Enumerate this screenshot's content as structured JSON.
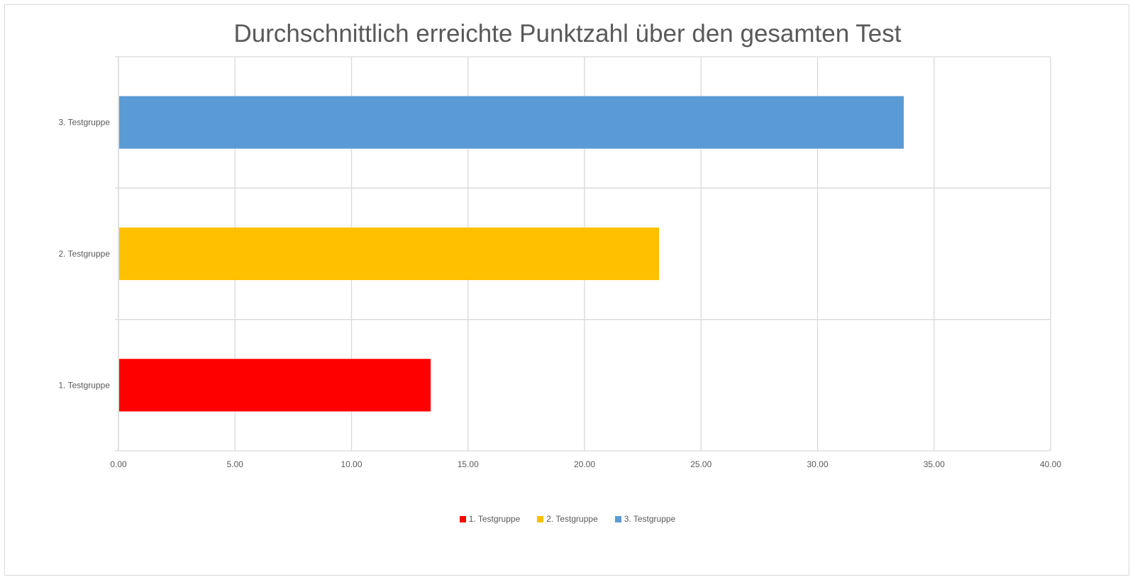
{
  "chart_data": {
    "type": "bar",
    "orientation": "horizontal",
    "title": "Durchschnittlich erreichte Punktzahl über den gesamten Test",
    "categories": [
      "1. Testgruppe",
      "2. Testgruppe",
      "3. Testgruppe"
    ],
    "values": [
      13.4,
      23.2,
      33.7
    ],
    "colors": [
      "#ff0000",
      "#ffc000",
      "#5b9bd5"
    ],
    "xlabel": "",
    "ylabel": "",
    "xlim": [
      0,
      40
    ],
    "x_ticks": [
      "0.00",
      "5.00",
      "10.00",
      "15.00",
      "20.00",
      "25.00",
      "30.00",
      "35.00",
      "40.00"
    ],
    "x_tick_values": [
      0,
      5,
      10,
      15,
      20,
      25,
      30,
      35,
      40
    ],
    "grid": true,
    "legend_position": "bottom",
    "legend": [
      "1. Testgruppe",
      "2. Testgruppe",
      "3. Testgruppe"
    ],
    "grid_color": "#d9d9d9",
    "text_color": "#595959"
  }
}
